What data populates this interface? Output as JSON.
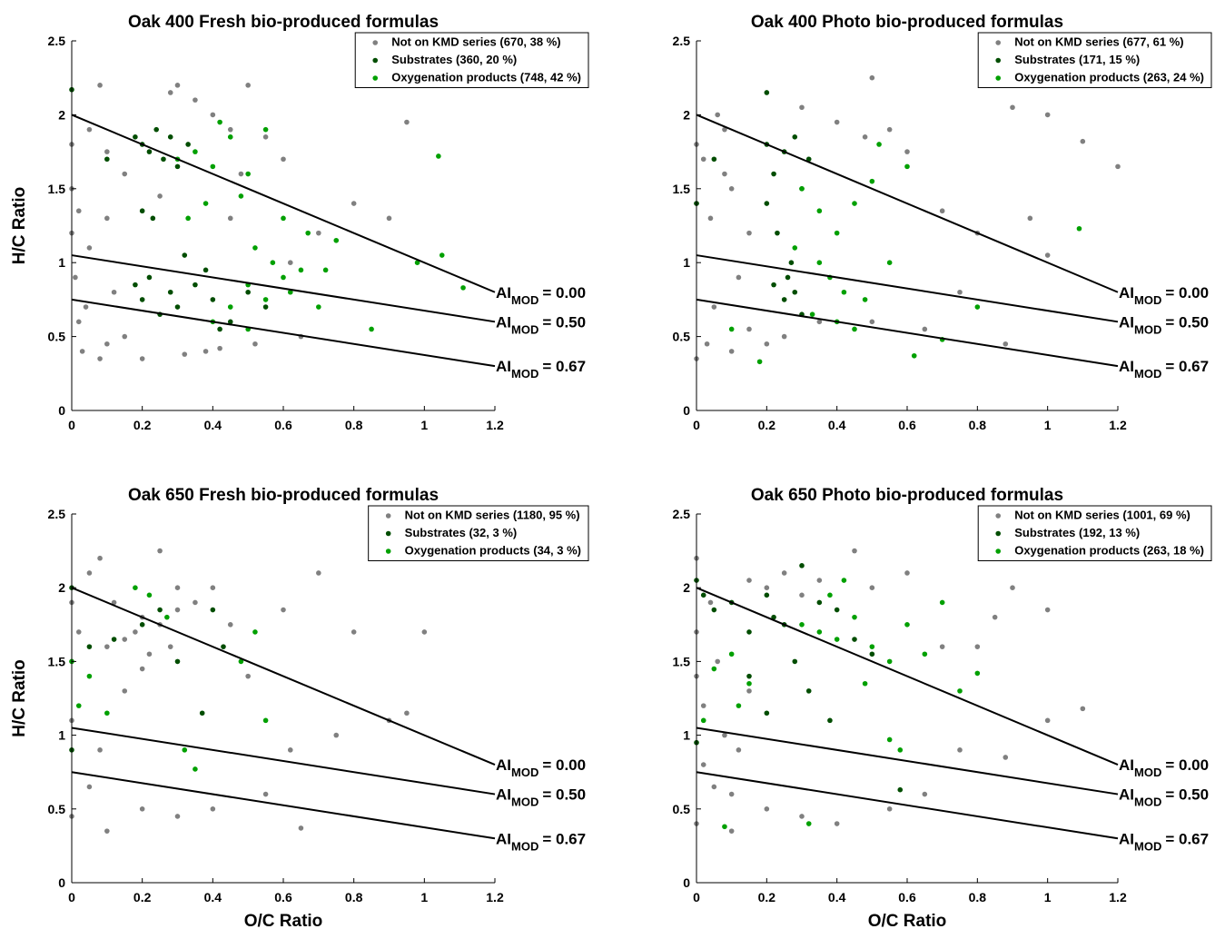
{
  "chart_data": [
    {
      "type": "scatter",
      "title": "Oak 400 Fresh bio-produced formulas",
      "ylabel": "H/C Ratio",
      "xlim": [
        0,
        1.2
      ],
      "ylim": [
        0,
        2.5
      ],
      "xticks": [
        0,
        0.2,
        0.4,
        0.6,
        0.8,
        1,
        1.2
      ],
      "yticks": [
        0,
        0.5,
        1,
        1.5,
        2,
        2.5
      ],
      "legend": "upper right",
      "series": [
        {
          "name": "Not on KMD series (670, 38 %)",
          "color": "#808080",
          "x": [
            0,
            0,
            0,
            0.01,
            0.02,
            0.03,
            0.05,
            0.08,
            0.1,
            0.12,
            0.15,
            0.05,
            0.08,
            0.02,
            0.1,
            0.3,
            0.35,
            0.4,
            0.45,
            0.5,
            0.55,
            0.6,
            0.45,
            0.7,
            0.8,
            0.9,
            0.95,
            0.65,
            0.38,
            0.28,
            0.15,
            0.25,
            0.48,
            0.62,
            0.04,
            0.1,
            0.2,
            0.32,
            0.42,
            0.52
          ],
          "y": [
            1.8,
            1.5,
            1.2,
            0.9,
            0.6,
            0.4,
            1.9,
            2.2,
            1.3,
            0.8,
            0.5,
            1.1,
            0.35,
            1.35,
            1.75,
            2.2,
            2.1,
            2.0,
            1.9,
            2.2,
            1.85,
            1.7,
            1.3,
            1.2,
            1.4,
            1.3,
            1.95,
            0.5,
            0.4,
            2.15,
            1.6,
            1.45,
            1.6,
            1.0,
            0.7,
            0.45,
            0.35,
            0.38,
            0.42,
            0.45
          ]
        },
        {
          "name": "Substrates (360, 20 %)",
          "color": "#004d00",
          "x": [
            0.18,
            0.2,
            0.22,
            0.24,
            0.26,
            0.28,
            0.3,
            0.33,
            0.2,
            0.23,
            0.18,
            0.2,
            0.22,
            0.25,
            0.28,
            0.3,
            0.35,
            0.4,
            0.45,
            0.5,
            0.32,
            0.38,
            0.42,
            0.0,
            0.1,
            0.55
          ],
          "y": [
            1.85,
            1.8,
            1.75,
            1.9,
            1.7,
            1.85,
            1.65,
            1.8,
            1.35,
            1.3,
            0.85,
            0.75,
            0.9,
            0.65,
            0.8,
            0.7,
            0.85,
            0.75,
            0.6,
            0.8,
            1.05,
            0.95,
            0.55,
            2.17,
            1.7,
            0.7
          ]
        },
        {
          "name": "Oxygenation products (748, 42 %)",
          "color": "#00a000",
          "x": [
            0.3,
            0.35,
            0.4,
            0.45,
            0.5,
            0.38,
            0.42,
            0.55,
            0.6,
            0.5,
            0.45,
            0.55,
            0.6,
            0.65,
            0.7,
            0.4,
            0.5,
            0.52,
            0.57,
            0.62,
            0.75,
            0.85,
            0.98,
            1.05,
            1.11,
            1.04,
            0.33,
            0.48,
            0.67,
            0.72
          ],
          "y": [
            1.7,
            1.75,
            1.65,
            1.85,
            1.6,
            1.4,
            1.95,
            1.9,
            1.3,
            0.85,
            0.7,
            0.75,
            0.9,
            0.95,
            0.7,
            0.6,
            0.55,
            1.1,
            1.0,
            0.8,
            1.15,
            0.55,
            1.0,
            1.05,
            0.83,
            1.72,
            1.3,
            1.45,
            1.2,
            0.95
          ]
        }
      ],
      "lines": [
        {
          "label": "AI",
          "label_sub": "MOD",
          "label_value": "= 0.00",
          "x": [
            0,
            1.2
          ],
          "y": [
            2,
            0.8
          ]
        },
        {
          "label": "AI",
          "label_sub": "MOD",
          "label_value": "= 0.50",
          "x": [
            0,
            1.2
          ],
          "y": [
            1.05,
            0.6
          ]
        },
        {
          "label": "AI",
          "label_sub": "MOD",
          "label_value": "= 0.67",
          "x": [
            0,
            1.2
          ],
          "y": [
            0.75,
            0.3
          ]
        }
      ]
    },
    {
      "type": "scatter",
      "title": "Oak 400 Photo bio-produced formulas",
      "xlim": [
        0,
        1.2
      ],
      "ylim": [
        0,
        2.5
      ],
      "xticks": [
        0,
        0.2,
        0.4,
        0.6,
        0.8,
        1,
        1.2
      ],
      "yticks": [
        0,
        0.5,
        1,
        1.5,
        2,
        2.5
      ],
      "legend": "upper right",
      "series": [
        {
          "name": "Not on KMD series (677, 61 %)",
          "color": "#808080",
          "x": [
            0,
            0,
            0,
            0.02,
            0.04,
            0.06,
            0.08,
            0.1,
            0.12,
            0.15,
            0.05,
            0.1,
            0.2,
            0.3,
            0.4,
            0.5,
            0.48,
            0.55,
            0.6,
            0.7,
            0.8,
            0.9,
            1.0,
            1.1,
            1.2,
            0.75,
            0.88,
            1.0,
            0.95,
            0.65,
            0.35,
            0.25,
            0.15,
            0.08,
            0.03,
            0.5
          ],
          "y": [
            1.8,
            1.4,
            0.35,
            1.7,
            1.3,
            2.0,
            1.9,
            1.5,
            0.9,
            1.2,
            0.7,
            0.4,
            0.45,
            2.05,
            1.95,
            2.25,
            1.85,
            1.9,
            1.75,
            1.35,
            1.2,
            2.05,
            2.0,
            1.82,
            1.65,
            0.8,
            0.45,
            1.05,
            1.3,
            0.55,
            0.6,
            0.5,
            0.55,
            1.6,
            0.45,
            0.6
          ]
        },
        {
          "name": "Substrates (171, 15 %)",
          "color": "#004d00",
          "x": [
            0.2,
            0.22,
            0.25,
            0.28,
            0.3,
            0.2,
            0.23,
            0.27,
            0.22,
            0.25,
            0.28,
            0.3,
            0.26,
            0.32,
            0.0,
            0.05,
            0.2
          ],
          "y": [
            1.8,
            1.6,
            1.75,
            1.85,
            1.5,
            1.4,
            1.2,
            1.0,
            0.85,
            0.75,
            0.8,
            0.65,
            0.9,
            1.7,
            1.4,
            1.7,
            2.15
          ]
        },
        {
          "name": "Oxygenation products (263, 24 %)",
          "color": "#00a000",
          "x": [
            0.3,
            0.35,
            0.4,
            0.45,
            0.5,
            0.38,
            0.42,
            0.33,
            0.4,
            0.48,
            0.55,
            0.6,
            0.62,
            0.7,
            1.09,
            0.28,
            0.35,
            0.45,
            0.52,
            0.18,
            0.8,
            0.1
          ],
          "y": [
            1.5,
            1.35,
            1.2,
            1.4,
            1.55,
            0.9,
            0.8,
            0.65,
            0.6,
            0.75,
            1.0,
            1.65,
            0.37,
            0.48,
            1.23,
            1.1,
            1.0,
            0.55,
            1.8,
            0.33,
            0.7,
            0.55
          ]
        }
      ],
      "lines": [
        {
          "label": "AI",
          "label_sub": "MOD",
          "label_value": "= 0.00",
          "x": [
            0,
            1.2
          ],
          "y": [
            2,
            0.8
          ]
        },
        {
          "label": "AI",
          "label_sub": "MOD",
          "label_value": "= 0.50",
          "x": [
            0,
            1.2
          ],
          "y": [
            1.05,
            0.6
          ]
        },
        {
          "label": "AI",
          "label_sub": "MOD",
          "label_value": "= 0.67",
          "x": [
            0,
            1.2
          ],
          "y": [
            0.75,
            0.3
          ]
        }
      ]
    },
    {
      "type": "scatter",
      "title": "Oak 650 Fresh bio-produced formulas",
      "xlabel": "O/C Ratio",
      "ylabel": "H/C Ratio",
      "xlim": [
        0,
        1.2
      ],
      "ylim": [
        0,
        2.5
      ],
      "xticks": [
        0,
        0.2,
        0.4,
        0.6,
        0.8,
        1,
        1.2
      ],
      "yticks": [
        0,
        0.5,
        1,
        1.5,
        2,
        2.5
      ],
      "legend": "upper right",
      "series": [
        {
          "name": "Not on KMD series (1180, 95 %)",
          "color": "#808080",
          "x": [
            0,
            0,
            0,
            0,
            0.02,
            0.05,
            0.08,
            0.1,
            0.12,
            0.15,
            0.18,
            0.2,
            0.22,
            0.25,
            0.28,
            0.3,
            0.2,
            0.25,
            0.15,
            0.3,
            0.35,
            0.4,
            0.45,
            0.5,
            0.6,
            0.7,
            0.8,
            0.9,
            1.0,
            0.95,
            0.75,
            0.62,
            0.55,
            0.4,
            0.3,
            0.1,
            0.05,
            0.08,
            0.2,
            0.65
          ],
          "y": [
            1.9,
            1.5,
            1.1,
            0.45,
            1.7,
            2.1,
            2.2,
            1.6,
            1.9,
            1.65,
            1.7,
            1.8,
            1.55,
            1.75,
            1.6,
            1.85,
            1.45,
            2.25,
            1.3,
            2.0,
            1.9,
            2.0,
            1.75,
            1.4,
            1.85,
            2.1,
            1.7,
            1.1,
            1.7,
            1.15,
            1.0,
            0.9,
            0.6,
            0.5,
            0.45,
            0.35,
            0.65,
            0.9,
            0.5,
            0.37
          ]
        },
        {
          "name": "Substrates (32, 3 %)",
          "color": "#004d00",
          "x": [
            0,
            0,
            0.05,
            0.12,
            0.2,
            0.25,
            0.3,
            0.4,
            0.43,
            0.37
          ],
          "y": [
            2.0,
            0.9,
            1.6,
            1.65,
            1.75,
            1.85,
            1.5,
            1.85,
            1.6,
            1.15
          ]
        },
        {
          "name": "Oxygenation products (34, 3 %)",
          "color": "#00a000",
          "x": [
            0,
            0.02,
            0.05,
            0.1,
            0.18,
            0.22,
            0.27,
            0.32,
            0.35,
            0.52,
            0.55,
            0.48
          ],
          "y": [
            1.5,
            1.2,
            1.4,
            1.15,
            2.0,
            1.95,
            1.8,
            0.9,
            0.77,
            1.7,
            1.1,
            1.5
          ]
        }
      ],
      "lines": [
        {
          "label": "AI",
          "label_sub": "MOD",
          "label_value": "= 0.00",
          "x": [
            0,
            1.2
          ],
          "y": [
            2,
            0.8
          ]
        },
        {
          "label": "AI",
          "label_sub": "MOD",
          "label_value": "= 0.50",
          "x": [
            0,
            1.2
          ],
          "y": [
            1.05,
            0.6
          ]
        },
        {
          "label": "AI",
          "label_sub": "MOD",
          "label_value": "= 0.67",
          "x": [
            0,
            1.2
          ],
          "y": [
            0.75,
            0.3
          ]
        }
      ]
    },
    {
      "type": "scatter",
      "title": "Oak 650 Photo bio-produced formulas",
      "xlabel": "O/C Ratio",
      "xlim": [
        0,
        1.2
      ],
      "ylim": [
        0,
        2.5
      ],
      "xticks": [
        0,
        0.2,
        0.4,
        0.6,
        0.8,
        1,
        1.2
      ],
      "yticks": [
        0,
        0.5,
        1,
        1.5,
        2,
        2.5
      ],
      "legend": "upper right",
      "series": [
        {
          "name": "Not on KMD series (1001, 69 %)",
          "color": "#808080",
          "x": [
            0,
            0,
            0,
            0,
            0.02,
            0.04,
            0.06,
            0.08,
            0.1,
            0.12,
            0.15,
            0.2,
            0.25,
            0.3,
            0.35,
            0.45,
            0.5,
            0.6,
            0.7,
            0.8,
            0.85,
            0.9,
            1.0,
            1.1,
            1.0,
            0.88,
            0.75,
            0.65,
            0.55,
            0.4,
            0.3,
            0.2,
            0.1,
            0.05,
            0.02,
            0.15
          ],
          "y": [
            2.2,
            1.7,
            1.4,
            0.4,
            1.2,
            1.9,
            1.5,
            1.0,
            0.6,
            0.9,
            2.05,
            2.0,
            2.1,
            1.95,
            2.05,
            2.25,
            2.0,
            2.1,
            1.6,
            1.6,
            1.8,
            2.0,
            1.85,
            1.18,
            1.1,
            0.85,
            0.9,
            0.6,
            0.5,
            0.4,
            0.45,
            0.5,
            0.35,
            0.65,
            0.8,
            1.3
          ]
        },
        {
          "name": "Substrates (192, 13 %)",
          "color": "#004d00",
          "x": [
            0,
            0.02,
            0.05,
            0.1,
            0.15,
            0.2,
            0.22,
            0.25,
            0.3,
            0.35,
            0.4,
            0.28,
            0.32,
            0.45,
            0.5,
            0.2,
            0.15,
            0.38,
            0.58,
            0.0
          ],
          "y": [
            2.05,
            1.95,
            1.85,
            1.9,
            1.7,
            1.95,
            1.8,
            1.75,
            2.15,
            1.9,
            1.85,
            1.5,
            1.3,
            1.65,
            1.55,
            1.15,
            1.4,
            1.1,
            0.63,
            0.95
          ]
        },
        {
          "name": "Oxygenation products (263, 18 %)",
          "color": "#00a000",
          "x": [
            0.02,
            0.05,
            0.1,
            0.15,
            0.3,
            0.35,
            0.4,
            0.45,
            0.5,
            0.55,
            0.6,
            0.65,
            0.7,
            0.75,
            0.8,
            0.38,
            0.42,
            0.48,
            0.55,
            0.58,
            0.08,
            0.32,
            0.12
          ],
          "y": [
            1.1,
            1.45,
            1.55,
            1.35,
            1.75,
            1.7,
            1.65,
            1.8,
            1.6,
            1.5,
            1.75,
            1.55,
            1.9,
            1.3,
            1.42,
            1.95,
            2.05,
            1.35,
            0.97,
            0.9,
            0.38,
            0.4,
            1.2
          ]
        }
      ],
      "lines": [
        {
          "label": "AI",
          "label_sub": "MOD",
          "label_value": "= 0.00",
          "x": [
            0,
            1.2
          ],
          "y": [
            2,
            0.8
          ]
        },
        {
          "label": "AI",
          "label_sub": "MOD",
          "label_value": "= 0.50",
          "x": [
            0,
            1.2
          ],
          "y": [
            1.05,
            0.6
          ]
        },
        {
          "label": "AI",
          "label_sub": "MOD",
          "label_value": "= 0.67",
          "x": [
            0,
            1.2
          ],
          "y": [
            0.75,
            0.3
          ]
        }
      ]
    }
  ]
}
